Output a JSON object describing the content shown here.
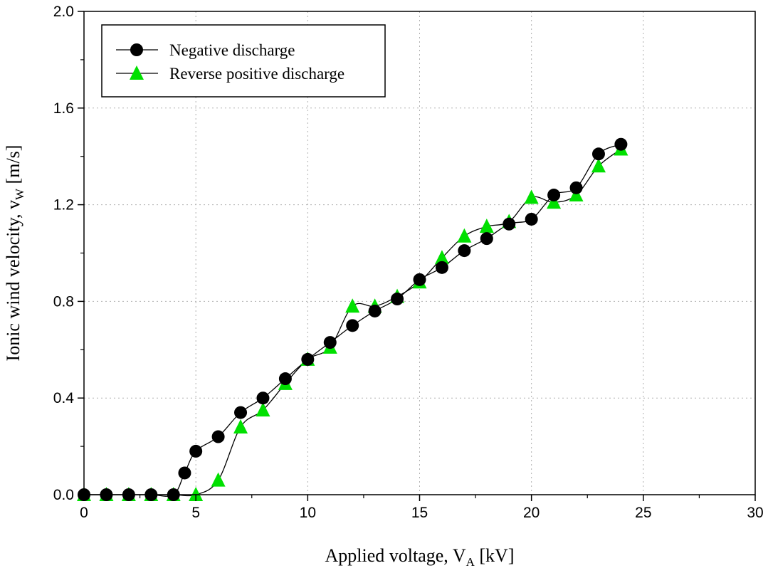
{
  "chart_data": {
    "type": "line",
    "xlabel": "Applied voltage, V",
    "xlabel_sub": "A",
    "xlabel_unit": " [kV]",
    "ylabel": "Ionic wind velocity, v",
    "ylabel_sub": "W",
    "ylabel_unit": " [m/s]",
    "xlim": [
      0,
      30
    ],
    "ylim": [
      0,
      2.0
    ],
    "x_ticks": [
      "0",
      "5",
      "10",
      "15",
      "20",
      "25",
      "30"
    ],
    "y_ticks": [
      "0.0",
      "0.4",
      "0.8",
      "1.2",
      "1.6",
      "2.0"
    ],
    "grid": true,
    "legend_position": "top-left",
    "series": [
      {
        "name": "Negative discharge",
        "marker": "circle",
        "color": "#000000",
        "x": [
          0,
          1,
          2,
          3,
          4,
          4.5,
          5,
          6,
          7,
          8,
          9,
          10,
          11,
          12,
          13,
          14,
          15,
          16,
          17,
          18,
          19,
          20,
          21,
          22,
          23,
          24
        ],
        "y": [
          0.0,
          0.0,
          0.0,
          0.0,
          0.0,
          0.09,
          0.18,
          0.24,
          0.34,
          0.4,
          0.48,
          0.56,
          0.63,
          0.7,
          0.76,
          0.81,
          0.89,
          0.94,
          1.01,
          1.06,
          1.12,
          1.14,
          1.24,
          1.27,
          1.41,
          1.45
        ]
      },
      {
        "name": "Reverse positive discharge",
        "marker": "triangle",
        "color": "#00e000",
        "x": [
          0,
          1,
          2,
          3,
          4,
          5,
          6,
          7,
          8,
          9,
          10,
          11,
          12,
          13,
          14,
          15,
          16,
          17,
          18,
          19,
          20,
          21,
          22,
          23,
          24
        ],
        "y": [
          0.0,
          0.0,
          0.0,
          0.0,
          0.0,
          0.0,
          0.06,
          0.28,
          0.35,
          0.46,
          0.56,
          0.61,
          0.78,
          0.78,
          0.82,
          0.88,
          0.98,
          1.07,
          1.11,
          1.13,
          1.23,
          1.21,
          1.24,
          1.36,
          1.43
        ]
      }
    ]
  }
}
